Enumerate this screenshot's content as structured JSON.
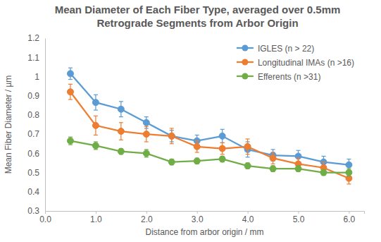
{
  "chart_data": {
    "type": "line",
    "title": "Mean Diameter of Each Fiber Type, averaged over 0.5mm Retrograde Segments from Arbor Origin",
    "x_label": "Distance from arbor origin / mm",
    "y_label": "Mean Fiber Diameter / µm",
    "x": [
      0.5,
      1.0,
      1.5,
      2.0,
      2.5,
      3.0,
      3.5,
      4.0,
      4.5,
      5.0,
      5.5,
      6.0
    ],
    "series": [
      {
        "name": "IGLES (n > 22)",
        "color": "#5b9bd5",
        "marker": "circle",
        "values": [
          1.015,
          0.865,
          0.83,
          0.76,
          0.69,
          0.665,
          0.69,
          0.62,
          0.59,
          0.585,
          0.555,
          0.54
        ],
        "errors": [
          0.03,
          0.04,
          0.04,
          0.03,
          0.03,
          0.03,
          0.035,
          0.04,
          0.03,
          0.03,
          0.03,
          0.03
        ]
      },
      {
        "name": "Longitudinal IMAs (n >16)",
        "color": "#ed7d31",
        "marker": "circle",
        "values": [
          0.92,
          0.745,
          0.715,
          0.7,
          0.69,
          0.635,
          0.625,
          0.635,
          0.575,
          0.545,
          0.525,
          0.47
        ],
        "errors": [
          0.04,
          0.05,
          0.045,
          0.04,
          0.04,
          0.03,
          0.03,
          0.04,
          0.03,
          0.03,
          0.03,
          0.03
        ]
      },
      {
        "name": "Efferents (n >31)",
        "color": "#70ad47",
        "marker": "circle",
        "values": [
          0.665,
          0.64,
          0.61,
          0.6,
          0.555,
          0.56,
          0.57,
          0.535,
          0.52,
          0.52,
          0.5,
          0.5
        ],
        "errors": [
          0.02,
          0.02,
          0.015,
          0.02,
          0.015,
          0.015,
          0.015,
          0.015,
          0.015,
          0.015,
          0.015,
          0.02
        ]
      }
    ],
    "xlim": [
      0,
      6.3
    ],
    "xticks": [
      {
        "value": 0,
        "label": "0.0"
      },
      {
        "value": 1,
        "label": "1.0"
      },
      {
        "value": 2,
        "label": "2.0"
      },
      {
        "value": 3,
        "label": "3.0"
      },
      {
        "value": 4,
        "label": "4.0"
      },
      {
        "value": 5,
        "label": "5.0"
      },
      {
        "value": 6,
        "label": "6.0"
      }
    ],
    "ylim": [
      0.3,
      1.2
    ],
    "yticks": [
      0.3,
      0.4,
      0.5,
      0.6,
      0.7,
      0.8,
      0.9,
      1,
      1.1,
      1.2
    ],
    "grid": false,
    "legend": "top-right"
  }
}
